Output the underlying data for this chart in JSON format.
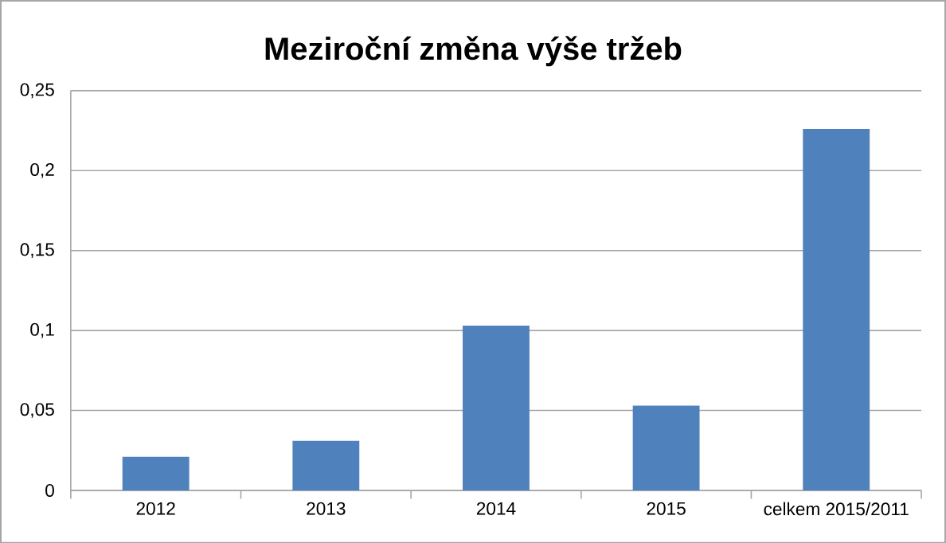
{
  "chart_data": {
    "type": "bar",
    "title": "Meziroční změna výše tržeb",
    "categories": [
      "2012",
      "2013",
      "2014",
      "2015",
      "celkem 2015/2011"
    ],
    "values": [
      0.021,
      0.031,
      0.103,
      0.053,
      0.226
    ],
    "color": "#4f81bd",
    "ylim": [
      0,
      0.25
    ],
    "yticks": [
      0,
      {
        "value": 0.05,
        "label": "0,05"
      },
      {
        "value": 0.1,
        "label": "0,1"
      },
      {
        "value": 0.15,
        "label": "0,15"
      },
      {
        "value": 0.2,
        "label": "0,2"
      },
      {
        "value": 0.25,
        "label": "0,25"
      }
    ],
    "grid": "y"
  }
}
